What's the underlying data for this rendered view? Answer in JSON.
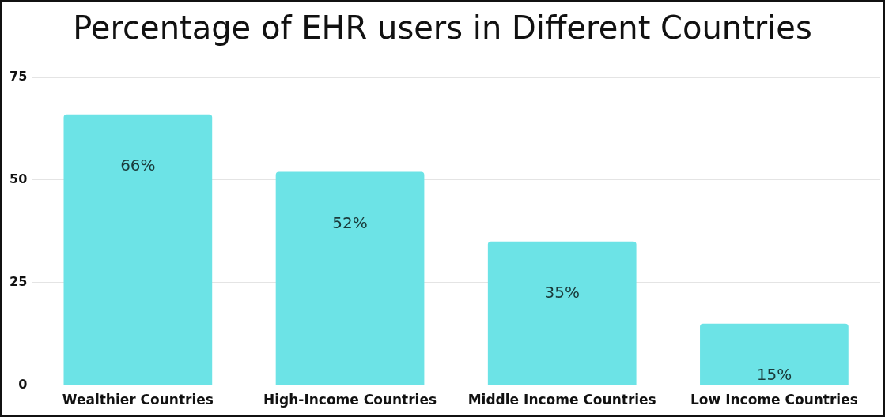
{
  "chart_data": {
    "type": "bar",
    "title": "Percentage of EHR users in Different Countries",
    "categories": [
      "Wealthier Countries",
      "High-Income Countries",
      "Middle Income Countries",
      "Low Income Countries"
    ],
    "values": [
      66,
      52,
      35,
      15
    ],
    "value_labels": [
      "66%",
      "52%",
      "35%",
      "15%"
    ],
    "color": "#6ce3e6",
    "ylim": [
      0,
      75
    ],
    "yticks": [
      0,
      25,
      50,
      75
    ],
    "grid": "y"
  }
}
